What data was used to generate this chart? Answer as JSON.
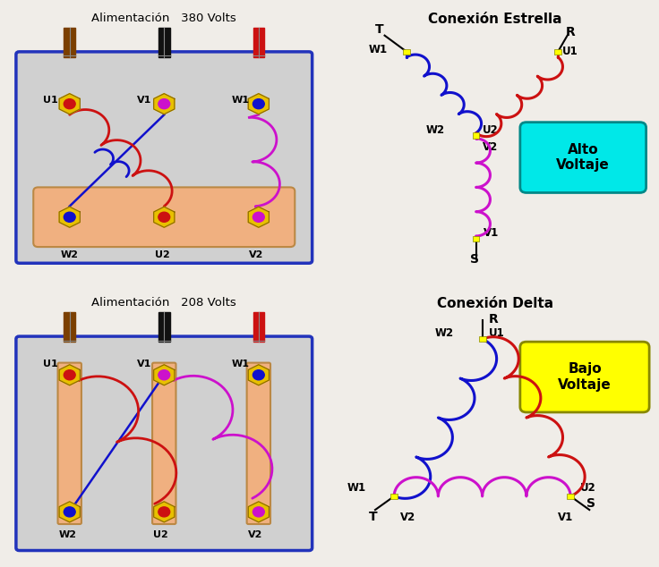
{
  "bg_color": "#f0ede8",
  "title_top": "Alimentación   380 Volts",
  "title_bottom": "Alimentación   208 Volts",
  "estrella_title": "Conexión Estrella",
  "delta_title": "Conexión Delta",
  "alto_voltaje": "Alto\nVoltaje",
  "bajo_voltaje": "Bajo\nVoltaje",
  "red": "#cc1111",
  "blue": "#1111cc",
  "magenta": "#cc11cc",
  "yellow": "#ffff00",
  "peach": "#f0b080",
  "box_border": "#2233bb",
  "box_fill": "#d0d0d0",
  "wire_brown": "#7B3F00",
  "wire_black": "#111111",
  "wire_red": "#cc1111",
  "terminal_gold": "#e8c000",
  "cyan_fill": "#00e8e8",
  "yellow_fill": "#ffff00",
  "clip_gray": "#888888"
}
